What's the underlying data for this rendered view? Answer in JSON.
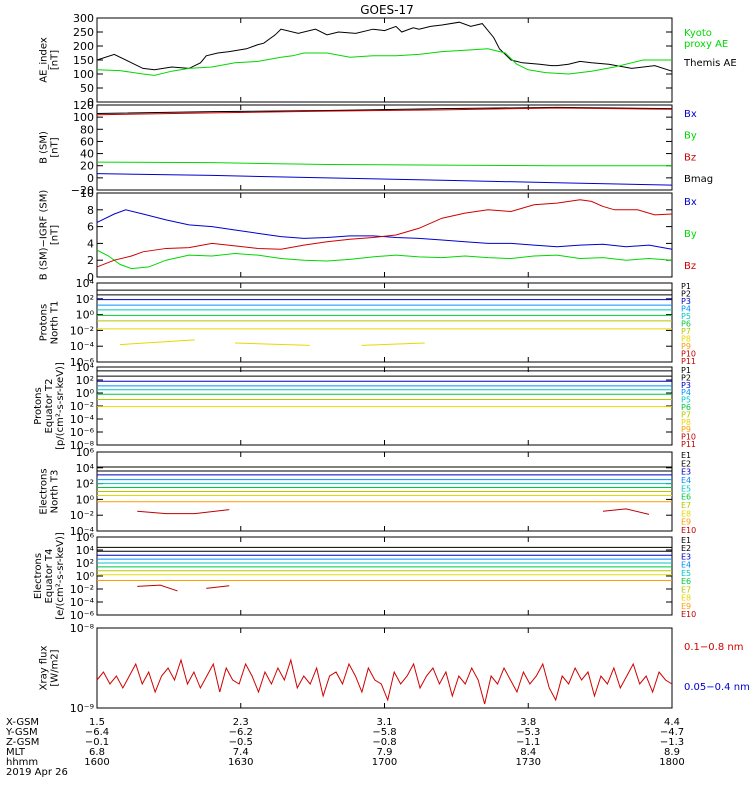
{
  "title": "GOES-17",
  "date_label": "2019 Apr 26",
  "colors": {
    "black": "#000000",
    "green": "#00d800",
    "blue": "#0000d0",
    "red": "#d00000",
    "channels": [
      "#000000",
      "#000000",
      "#0000c8",
      "#0090ff",
      "#00c8c8",
      "#00c840",
      "#b4c800",
      "#e8d800",
      "#ff9c00",
      "#c00000",
      "#c00000"
    ]
  },
  "chart_data": [
    {
      "id": "ae",
      "type": "line",
      "ylabel": "AE_index\n[nT]",
      "ylim": [
        0,
        300
      ],
      "yticks": [
        "0",
        "50",
        "100",
        "150",
        "200",
        "250",
        "300"
      ],
      "legend": [
        {
          "name": "Kyoto\nproxy AE",
          "color": "green"
        },
        {
          "name": "Themis AE",
          "color": "black"
        }
      ],
      "series": [
        {
          "name": "Themis AE",
          "color": "black",
          "x": [
            0,
            3,
            6,
            8,
            10,
            13,
            16,
            18,
            19,
            21,
            23,
            26,
            28,
            29,
            31,
            32,
            35,
            38,
            40,
            42,
            45,
            48,
            50,
            52,
            53,
            55,
            56,
            58,
            60,
            63,
            65,
            67,
            69,
            70,
            72,
            74,
            77,
            79,
            80,
            82,
            84,
            86,
            89,
            93,
            97,
            100
          ],
          "y": [
            150,
            170,
            140,
            120,
            115,
            125,
            120,
            140,
            165,
            175,
            180,
            190,
            205,
            210,
            240,
            260,
            245,
            260,
            240,
            250,
            245,
            260,
            255,
            270,
            250,
            265,
            260,
            270,
            275,
            285,
            270,
            280,
            230,
            190,
            150,
            140,
            135,
            130,
            130,
            135,
            145,
            140,
            135,
            120,
            130,
            110
          ]
        },
        {
          "name": "Kyoto proxy AE",
          "color": "green",
          "x": [
            0,
            4,
            8,
            10,
            13,
            16,
            20,
            24,
            28,
            32,
            34,
            36,
            40,
            44,
            48,
            52,
            56,
            60,
            64,
            68,
            71,
            73,
            75,
            78,
            82,
            86,
            90,
            95,
            100
          ],
          "y": [
            115,
            112,
            100,
            95,
            110,
            120,
            125,
            140,
            145,
            160,
            165,
            175,
            175,
            160,
            165,
            165,
            170,
            180,
            185,
            190,
            175,
            135,
            115,
            105,
            100,
            110,
            125,
            150,
            150
          ]
        }
      ]
    },
    {
      "id": "bsm",
      "type": "line",
      "ylabel": "B (SM)\n[nT]",
      "ylim": [
        -20,
        120
      ],
      "yticks": [
        "−20",
        "0",
        "20",
        "40",
        "60",
        "80",
        "100",
        "120"
      ],
      "legend": [
        {
          "name": "Bx",
          "color": "blue"
        },
        {
          "name": "By",
          "color": "green"
        },
        {
          "name": "Bz",
          "color": "red"
        },
        {
          "name": "Bmag",
          "color": "black"
        }
      ],
      "series": [
        {
          "name": "Bmag",
          "color": "black",
          "x": [
            0,
            20,
            40,
            60,
            80,
            100
          ],
          "y": [
            106,
            109,
            111,
            114,
            116,
            114
          ]
        },
        {
          "name": "Bz",
          "color": "red",
          "x": [
            0,
            20,
            40,
            60,
            80,
            100
          ],
          "y": [
            104,
            107,
            110,
            112,
            115,
            113
          ]
        },
        {
          "name": "By",
          "color": "green",
          "x": [
            0,
            20,
            40,
            60,
            80,
            100
          ],
          "y": [
            26,
            25,
            22,
            21,
            20,
            20
          ]
        },
        {
          "name": "Bx",
          "color": "blue",
          "x": [
            0,
            20,
            40,
            60,
            80,
            100
          ],
          "y": [
            7,
            4,
            0,
            -4,
            -8,
            -12
          ]
        }
      ]
    },
    {
      "id": "bdiff",
      "type": "line",
      "ylabel": "B (SM)−IGRF (SM)\n[nT]",
      "ylim": [
        0,
        10
      ],
      "yticks": [
        "0",
        "2",
        "4",
        "6",
        "8",
        "10"
      ],
      "legend": [
        {
          "name": "Bx",
          "color": "blue"
        },
        {
          "name": "By",
          "color": "green"
        },
        {
          "name": "Bz",
          "color": "red"
        }
      ],
      "series": [
        {
          "name": "Bx",
          "color": "blue",
          "x": [
            0,
            3,
            5,
            8,
            12,
            16,
            20,
            24,
            28,
            32,
            36,
            40,
            44,
            48,
            52,
            56,
            60,
            64,
            68,
            72,
            76,
            80,
            84,
            88,
            92,
            96,
            100
          ],
          "y": [
            6.5,
            7.5,
            8,
            7.5,
            6.8,
            6.2,
            6,
            5.6,
            5.2,
            4.8,
            4.6,
            4.7,
            4.9,
            4.9,
            4.7,
            4.6,
            4.4,
            4.2,
            4.0,
            4.0,
            3.8,
            3.6,
            3.8,
            3.9,
            3.6,
            3.8,
            3.3
          ]
        },
        {
          "name": "By",
          "color": "green",
          "x": [
            0,
            2,
            4,
            6,
            9,
            12,
            16,
            20,
            24,
            28,
            32,
            36,
            40,
            44,
            48,
            52,
            56,
            60,
            64,
            68,
            72,
            76,
            80,
            84,
            88,
            92,
            96,
            100
          ],
          "y": [
            3.2,
            2.5,
            1.5,
            1,
            1.2,
            2,
            2.6,
            2.5,
            2.8,
            2.6,
            2.2,
            2,
            1.9,
            2.1,
            2.4,
            2.6,
            2.4,
            2.3,
            2.5,
            2.3,
            2.2,
            2.5,
            2.6,
            2.2,
            2.3,
            2.0,
            2.2,
            2.0
          ]
        },
        {
          "name": "Bz",
          "color": "red",
          "x": [
            0,
            3,
            6,
            8,
            12,
            16,
            20,
            24,
            28,
            32,
            36,
            40,
            44,
            48,
            52,
            56,
            60,
            64,
            68,
            72,
            76,
            80,
            84,
            86,
            88,
            90,
            94,
            97,
            100
          ],
          "y": [
            1.2,
            2,
            2.5,
            3,
            3.4,
            3.5,
            4,
            3.7,
            3.4,
            3.3,
            3.8,
            4.2,
            4.5,
            4.7,
            5,
            5.8,
            7,
            7.6,
            8,
            7.8,
            8.6,
            8.8,
            9.2,
            9,
            8.4,
            8,
            8,
            7.4,
            7.5
          ]
        }
      ]
    },
    {
      "id": "pn",
      "type": "line",
      "ylabel": "Protons\nNorth T1",
      "log": true,
      "ylim": [
        -6,
        4
      ],
      "yticks": [
        "10⁻⁶",
        "10⁻⁴",
        "10⁻²",
        "10⁰",
        "10²",
        "10⁴"
      ],
      "yexp": [
        -6,
        -4,
        -2,
        0,
        2,
        4
      ],
      "legend_labels": [
        "P1",
        "P2",
        "P3",
        "P4",
        "P5",
        "P6",
        "P7",
        "P8",
        "P9",
        "P10",
        "P11"
      ],
      "levels": [
        3.1,
        2.5,
        1.9,
        1.2,
        0.6,
        -0.1,
        -0.8,
        -1.8
      ],
      "segments": [
        {
          "x": [
            4,
            17
          ],
          "y": [
            -3.8,
            -3.2
          ]
        },
        {
          "x": [
            24,
            37
          ],
          "y": [
            -3.6,
            -3.9
          ]
        },
        {
          "x": [
            46,
            57
          ],
          "y": [
            -3.9,
            -3.6
          ]
        }
      ]
    },
    {
      "id": "pe",
      "type": "line",
      "ylabel": "Protons\nEquator T2\n[p/(cm²-s-sr-keV)]",
      "log": true,
      "ylim": [
        -8,
        4
      ],
      "yticks": [
        "10⁻⁸",
        "10⁻⁶",
        "10⁻⁴",
        "10⁻²",
        "10⁰",
        "10²",
        "10⁴"
      ],
      "yexp": [
        -8,
        -6,
        -4,
        -2,
        0,
        2,
        4
      ],
      "legend_labels": [
        "P1",
        "P2",
        "P3",
        "P4",
        "P5",
        "P6",
        "P7",
        "P8",
        "P9",
        "P10",
        "P11"
      ],
      "levels": [
        3.4,
        2.6,
        1.8,
        1.1,
        0.5,
        -0.2,
        -1.0,
        -2.1
      ],
      "segments": []
    },
    {
      "id": "en",
      "type": "line",
      "ylabel": "Electrons\nNorth T3",
      "log": true,
      "ylim": [
        -4,
        6
      ],
      "yticks": [
        "10⁻⁴",
        "10⁻²",
        "10⁰",
        "10²",
        "10⁴",
        "10⁶"
      ],
      "yexp": [
        -4,
        -2,
        0,
        2,
        4,
        6
      ],
      "legend_labels": [
        "E1",
        "E2",
        "E3",
        "E4",
        "E5",
        "E6",
        "E7",
        "E8",
        "E9",
        "E10"
      ],
      "levels": [
        4.1,
        3.6,
        3.1,
        2.5,
        2.0,
        1.5,
        1.0,
        0.5,
        -0.3
      ],
      "segments": [
        {
          "x": [
            7,
            12,
            17,
            23
          ],
          "y": [
            -1.5,
            -1.8,
            -1.8,
            -1.3
          ]
        },
        {
          "x": [
            88,
            92,
            96
          ],
          "y": [
            -1.5,
            -1.2,
            -1.9
          ]
        }
      ]
    },
    {
      "id": "ee",
      "type": "line",
      "ylabel": "Electrons\nEquator T4\n[e/(cm²-s-sr-keV)]",
      "log": true,
      "ylim": [
        -6,
        6
      ],
      "yticks": [
        "10⁻⁶",
        "10⁻⁴",
        "10⁻²",
        "10⁰",
        "10²",
        "10⁴",
        "10⁶"
      ],
      "yexp": [
        -6,
        -4,
        -2,
        0,
        2,
        4,
        6
      ],
      "legend_labels": [
        "E1",
        "E2",
        "E3",
        "E4",
        "E5",
        "E6",
        "E7",
        "E8",
        "E9",
        "E10"
      ],
      "levels": [
        4.4,
        3.8,
        3.2,
        2.6,
        2.0,
        1.4,
        0.8,
        0.2,
        -0.7
      ],
      "segments": [
        {
          "x": [
            7,
            11,
            14
          ],
          "y": [
            -1.6,
            -1.4,
            -2.3
          ]
        },
        {
          "x": [
            19,
            23
          ],
          "y": [
            -1.9,
            -1.5
          ]
        }
      ]
    },
    {
      "id": "xray",
      "type": "line",
      "ylabel": "Xray flux\n[W/m2]",
      "log": true,
      "ylim": [
        -9,
        -8
      ],
      "yticks": [
        "10⁻⁹",
        "10⁻⁸"
      ],
      "yexp": [
        -9,
        -8
      ],
      "legend": [
        {
          "name": "0.1−0.8 nm",
          "color": "red"
        },
        {
          "name": "0.05−0.4 nm",
          "color": "blue"
        }
      ],
      "series": [
        {
          "name": "0.1−0.8 nm",
          "color": "red",
          "y": [
            -8.65,
            -8.55,
            -8.7,
            -8.6,
            -8.75,
            -8.6,
            -8.45,
            -8.7,
            -8.55,
            -8.8,
            -8.6,
            -8.5,
            -8.65,
            -8.4,
            -8.7,
            -8.55,
            -8.75,
            -8.6,
            -8.45,
            -8.8,
            -8.5,
            -8.65,
            -8.7,
            -8.45,
            -8.6,
            -8.8,
            -8.55,
            -8.7,
            -8.5,
            -8.65,
            -8.4,
            -8.75,
            -8.6,
            -8.7,
            -8.5,
            -8.85,
            -8.6,
            -8.55,
            -8.7,
            -8.45,
            -8.6,
            -8.8,
            -8.5,
            -8.65,
            -8.7,
            -8.9,
            -8.55,
            -8.7,
            -8.6,
            -8.45,
            -8.75,
            -8.6,
            -8.5,
            -8.7,
            -8.55,
            -8.85,
            -8.6,
            -8.7,
            -8.5,
            -8.65,
            -8.95,
            -8.6,
            -8.7,
            -8.5,
            -8.65,
            -8.8,
            -8.55,
            -8.7,
            -8.6,
            -8.45,
            -8.75,
            -8.9,
            -8.6,
            -8.7,
            -8.5,
            -8.65,
            -8.55,
            -8.85,
            -8.6,
            -8.7,
            -8.5,
            -8.75,
            -8.6,
            -8.45,
            -8.7,
            -8.6,
            -8.8,
            -8.55,
            -8.65,
            -8.7
          ]
        }
      ]
    }
  ],
  "x_axis": {
    "rows": [
      {
        "label": "X-GSM",
        "values": [
          "1.5",
          "2.3",
          "3.1",
          "3.8",
          "4.4"
        ]
      },
      {
        "label": "Y-GSM",
        "values": [
          "−6.4",
          "−6.2",
          "−5.8",
          "−5.3",
          "−4.7"
        ]
      },
      {
        "label": "Z-GSM",
        "values": [
          "−0.1",
          "−0.5",
          "−0.8",
          "−1.1",
          "−1.3"
        ]
      },
      {
        "label": "MLT",
        "values": [
          "6.8",
          "7.4",
          "7.9",
          "8.4",
          "8.9"
        ]
      },
      {
        "label": "hhmm",
        "values": [
          "1600",
          "1630",
          "1700",
          "1730",
          "1800"
        ]
      }
    ],
    "tick_positions": [
      0,
      25,
      50,
      75,
      100
    ]
  }
}
